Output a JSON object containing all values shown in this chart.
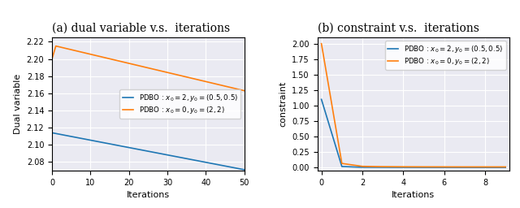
{
  "title_a": "(a) dual variable v.s.  iterations",
  "title_b": "(b) constraint v.s.  iterations",
  "xlabel": "Iterations",
  "ylabel_a": "Dual variable",
  "ylabel_b": "constraint",
  "legend_blue": "PDBO : $x_0 = 2, y_0 = (0.5, 0.5)$",
  "legend_orange": "PDBO : $x_0 = 0, y_0 = (2, 2)$",
  "color_blue": "#1f77b4",
  "color_orange": "#ff7f0e",
  "plot_a_xlim": [
    0,
    50
  ],
  "plot_a_ylim": [
    2.07,
    2.225
  ],
  "plot_a_yticks": [
    2.08,
    2.1,
    2.12,
    2.14,
    2.16,
    2.18,
    2.2,
    2.22
  ],
  "plot_a_xticks": [
    0,
    10,
    20,
    30,
    40,
    50
  ],
  "plot_b_xlim": [
    -0.2,
    9.2
  ],
  "plot_b_ylim": [
    -0.05,
    2.1
  ],
  "plot_b_yticks": [
    0.0,
    0.25,
    0.5,
    0.75,
    1.0,
    1.25,
    1.5,
    1.75,
    2.0
  ],
  "plot_b_xticks": [
    0,
    2,
    4,
    6,
    8
  ],
  "bg_color": "#eaeaf2"
}
